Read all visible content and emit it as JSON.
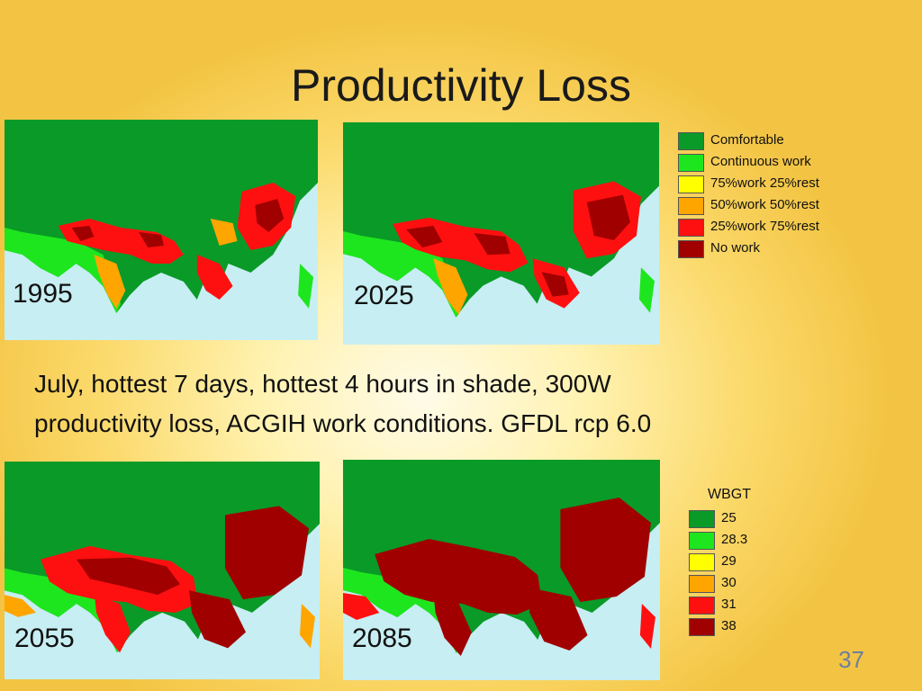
{
  "slide": {
    "title": "Productivity Loss",
    "caption_line1": "July, hottest 7 days, hottest 4 hours in shade, 300W",
    "caption_line2": "productivity loss, ACGIH work conditions. GFDL rcp 6.0",
    "page_number": "37"
  },
  "maps": [
    {
      "year": "1995"
    },
    {
      "year": "2025"
    },
    {
      "year": "2055"
    },
    {
      "year": "2085"
    }
  ],
  "legend_work": [
    {
      "label": "Comfortable",
      "color": "#0a9a28"
    },
    {
      "label": "Continuous work",
      "color": "#1ee61e"
    },
    {
      "label": "75%work 25%rest",
      "color": "#ffff00"
    },
    {
      "label": "50%work 50%rest",
      "color": "#ffa500"
    },
    {
      "label": "25%work 75%rest",
      "color": "#ff1010"
    },
    {
      "label": "No work",
      "color": "#a00000"
    }
  ],
  "legend_wbgt": {
    "title": "WBGT",
    "items": [
      {
        "label": "25",
        "color": "#0a9a28"
      },
      {
        "label": "28.3",
        "color": "#1ee61e"
      },
      {
        "label": "29",
        "color": "#ffff00"
      },
      {
        "label": "30",
        "color": "#ffa500"
      },
      {
        "label": "31",
        "color": "#ff1010"
      },
      {
        "label": "38",
        "color": "#a00000"
      }
    ]
  }
}
